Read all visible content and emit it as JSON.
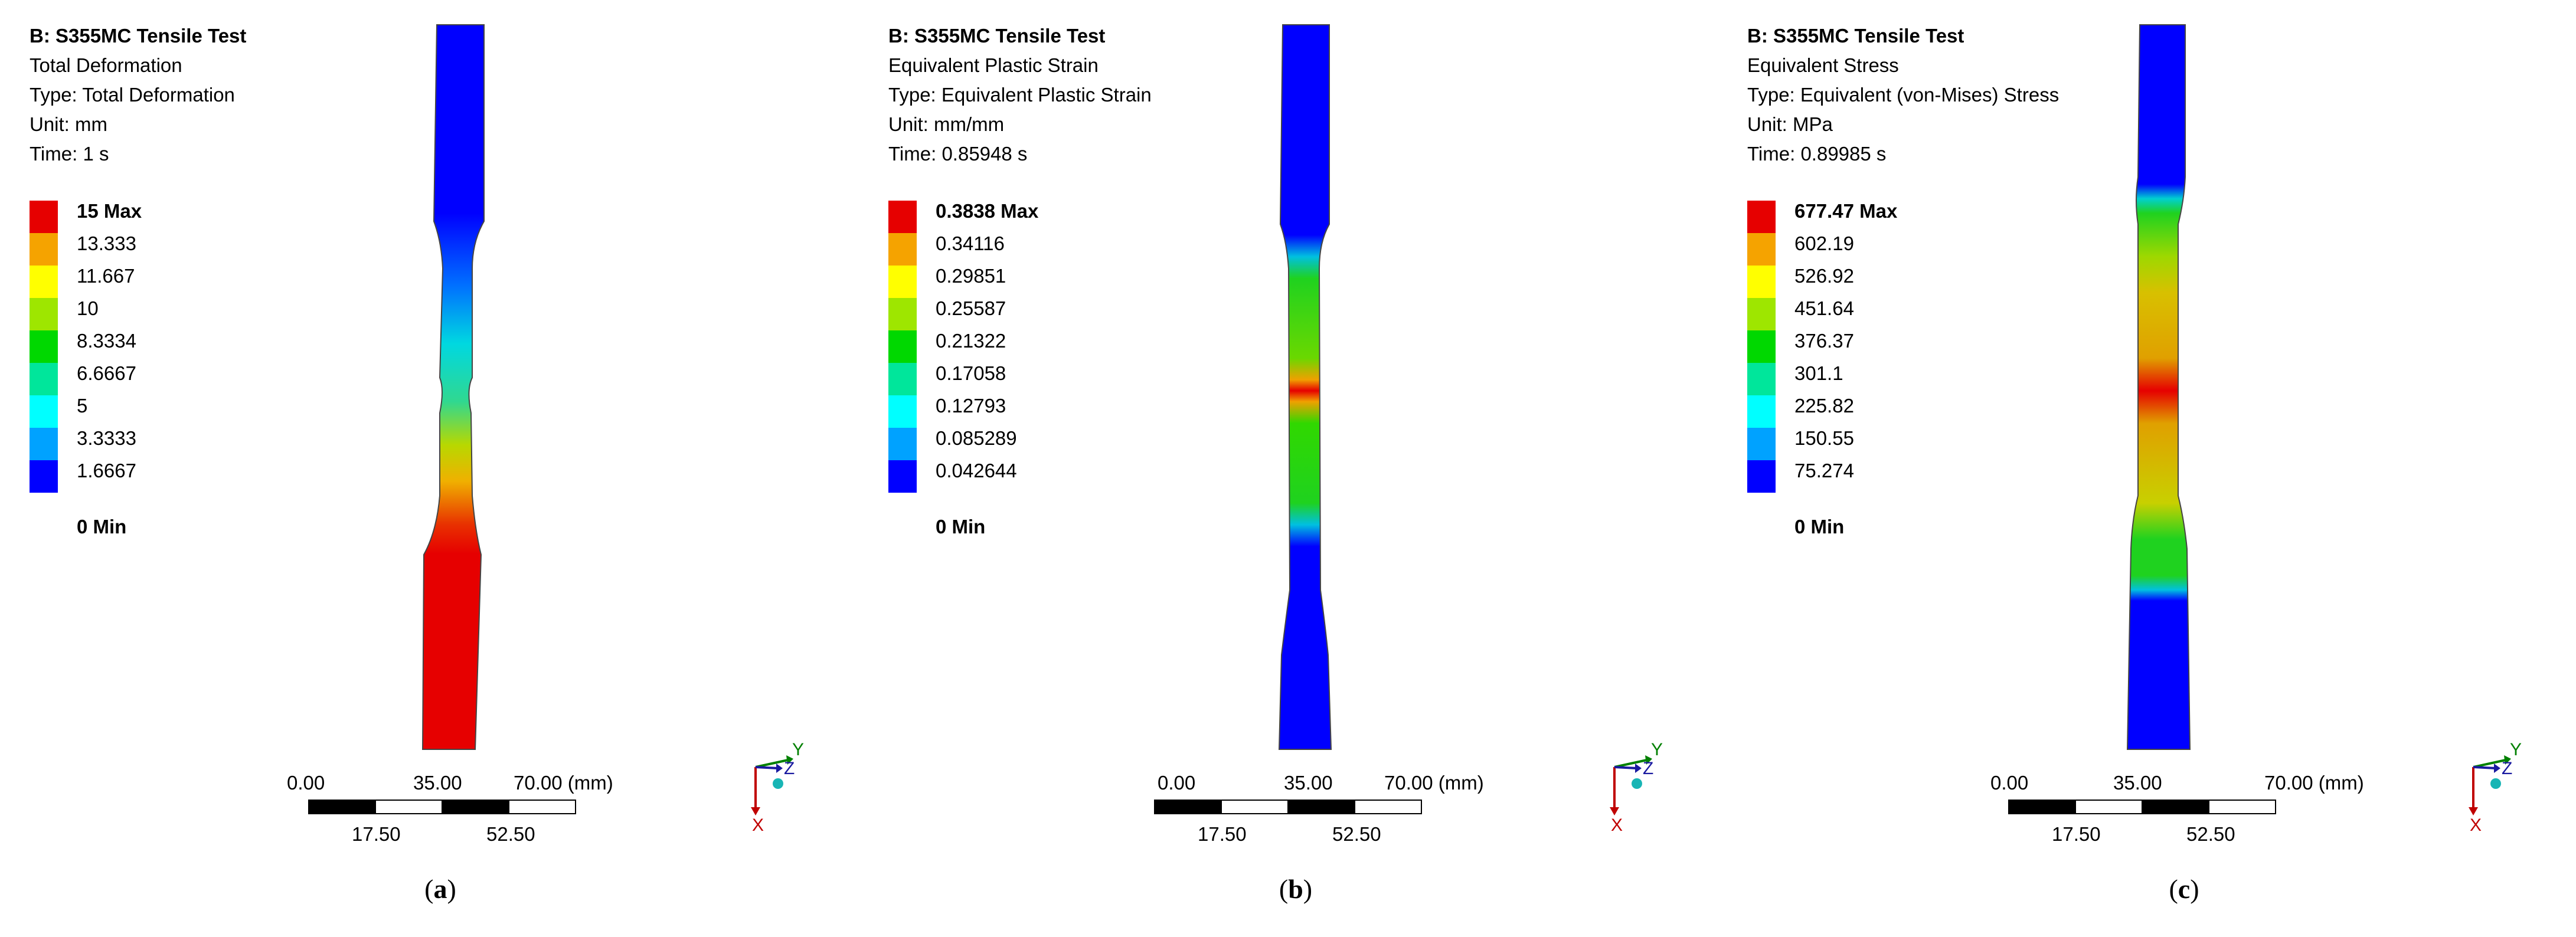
{
  "palette": [
    "#e60000",
    "#f5a300",
    "#ffff00",
    "#9ee600",
    "#00d800",
    "#00e69b",
    "#00ffff",
    "#00a2ff",
    "#0000ff"
  ],
  "panels": [
    {
      "id": "a",
      "title": "B: S355MC Tensile Test",
      "lines": [
        "Total Deformation",
        "Type: Total Deformation",
        "Unit: mm",
        "Time: 1 s"
      ],
      "legend": [
        "15 Max",
        "13.333",
        "11.667",
        "10",
        "8.3334",
        "6.6667",
        "5",
        "3.3333",
        "1.6667",
        "0 Min"
      ],
      "caption_letter": "a",
      "colors": {
        "top_grip": "#0000ff",
        "gauge_top": "#00b5e0",
        "gauge_mid": "#f0a800",
        "bottom": "#e60000"
      }
    },
    {
      "id": "b",
      "title": "B: S355MC Tensile Test",
      "lines": [
        "Equivalent Plastic Strain",
        "Type: Equivalent Plastic Strain",
        "Unit: mm/mm",
        "Time: 0.85948 s"
      ],
      "legend": [
        "0.3838 Max",
        "0.34116",
        "0.29851",
        "0.25587",
        "0.21322",
        "0.17058",
        "0.12793",
        "0.085289",
        "0.042644",
        "0 Min"
      ],
      "caption_letter": "b",
      "colors": {
        "grip": "#0000ff",
        "gauge": "#1fd21f",
        "neck": "#e60000"
      }
    },
    {
      "id": "c",
      "title": "B: S355MC Tensile Test",
      "lines": [
        "Equivalent Stress",
        "Type: Equivalent (von-Mises) Stress",
        "Unit: MPa",
        "Time: 0.89985 s"
      ],
      "legend": [
        "677.47 Max",
        "602.19",
        "526.92",
        "451.64",
        "376.37",
        "301.1",
        "225.82",
        "150.55",
        "75.274",
        "0 Min"
      ],
      "caption_letter": "c",
      "colors": {
        "grip": "#0000ff",
        "shoulder": "#1fd21f",
        "gauge": "#d8c000",
        "neck": "#e60000"
      }
    }
  ],
  "scale": {
    "labels_top": [
      "0.00",
      "35.00",
      "70.00 (mm)"
    ],
    "labels_bottom": [
      "17.50",
      "52.50"
    ]
  },
  "triad": {
    "x": "X",
    "y": "Y",
    "z": "Z"
  }
}
